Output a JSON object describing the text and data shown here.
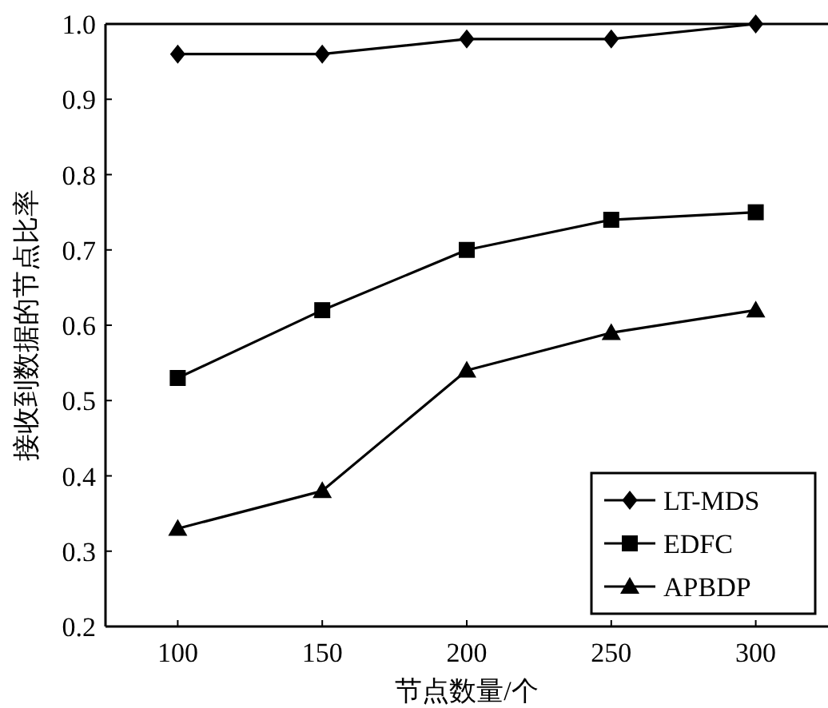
{
  "chart_data": {
    "type": "line",
    "xlabel": "节点数量/个",
    "ylabel": "接收到数据的节点比率",
    "x": [
      100,
      150,
      200,
      250,
      300
    ],
    "series": [
      {
        "name": "LT-MDS",
        "color": "#000000",
        "marker": "diamond",
        "values": [
          0.96,
          0.96,
          0.98,
          0.98,
          1.0
        ]
      },
      {
        "name": "EDFC",
        "color": "#000000",
        "marker": "square",
        "values": [
          0.53,
          0.62,
          0.7,
          0.74,
          0.75
        ]
      },
      {
        "name": "APBDP",
        "color": "#000000",
        "marker": "triangle",
        "values": [
          0.33,
          0.38,
          0.54,
          0.59,
          0.62
        ]
      }
    ],
    "xlim": [
      75,
      325
    ],
    "ylim": [
      0.2,
      1.0
    ],
    "xticks": [
      100,
      150,
      200,
      250,
      300
    ],
    "yticks": [
      {
        "value": 0.2,
        "label": "0.2"
      },
      {
        "value": 0.3,
        "label": "0.3"
      },
      {
        "value": 0.4,
        "label": "0.4"
      },
      {
        "value": 0.5,
        "label": "0.5"
      },
      {
        "value": 0.6,
        "label": "0.6"
      },
      {
        "value": 0.7,
        "label": "0.7"
      },
      {
        "value": 0.8,
        "label": "0.8"
      },
      {
        "value": 0.9,
        "label": "0.9"
      },
      {
        "value": 1.0,
        "label": "1.0"
      }
    ],
    "grid": false,
    "legend": "bottom right",
    "line_style": "solid"
  }
}
